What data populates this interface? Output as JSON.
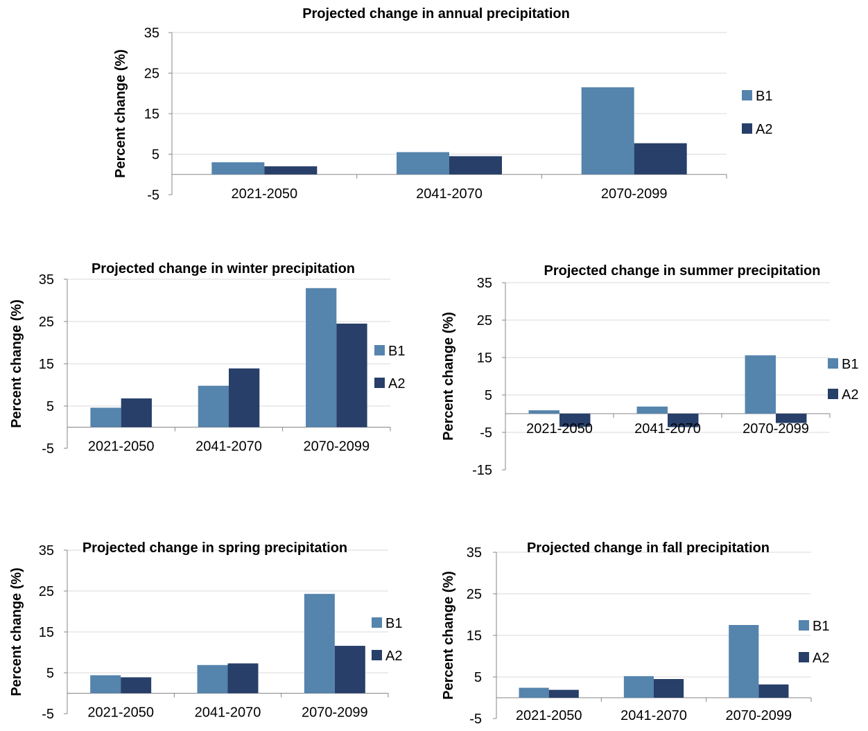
{
  "chart_data": [
    {
      "type": "bar",
      "title": "Projected change in annual precipitation",
      "ylabel": "Percent change (%)",
      "xlabel": "",
      "categories": [
        "2021-2050",
        "2041-2070",
        "2070-2099"
      ],
      "series": [
        {
          "name": "B1",
          "values": [
            3.0,
            5.5,
            21.5
          ]
        },
        {
          "name": "A2",
          "values": [
            2.0,
            4.5,
            7.7
          ]
        }
      ],
      "ylim": [
        -5,
        35
      ],
      "yticks": [
        -5,
        5,
        15,
        25,
        35
      ],
      "grid": true,
      "legend": "right"
    },
    {
      "type": "bar",
      "title": "Projected change in winter precipitation",
      "ylabel": "Percent change (%)",
      "xlabel": "",
      "categories": [
        "2021-2050",
        "2041-2070",
        "2070-2099"
      ],
      "series": [
        {
          "name": "B1",
          "values": [
            4.6,
            9.8,
            32.9
          ]
        },
        {
          "name": "A2",
          "values": [
            6.8,
            13.9,
            24.5
          ]
        }
      ],
      "ylim": [
        -5,
        35
      ],
      "yticks": [
        -5,
        5,
        15,
        25,
        35
      ],
      "grid": true,
      "legend": "right"
    },
    {
      "type": "bar",
      "title": "Projected change in summer precipitation",
      "ylabel": "Percent change (%)",
      "xlabel": "",
      "categories": [
        "2021-2050",
        "2041-2070",
        "2070-2099"
      ],
      "series": [
        {
          "name": "B1",
          "values": [
            0.9,
            1.9,
            15.6
          ]
        },
        {
          "name": "A2",
          "values": [
            -3.5,
            -3.6,
            -2.5
          ]
        }
      ],
      "ylim": [
        -15,
        35
      ],
      "yticks": [
        -15,
        -5,
        5,
        15,
        25,
        35
      ],
      "grid": true,
      "legend": "right"
    },
    {
      "type": "bar",
      "title": "Projected change in spring precipitation",
      "ylabel": "Percent change (%)",
      "xlabel": "",
      "categories": [
        "2021-2050",
        "2041-2070",
        "2070-2099"
      ],
      "series": [
        {
          "name": "B1",
          "values": [
            4.4,
            6.9,
            24.3
          ]
        },
        {
          "name": "A2",
          "values": [
            3.9,
            7.3,
            11.6
          ]
        }
      ],
      "ylim": [
        -5,
        35
      ],
      "yticks": [
        -5,
        5,
        15,
        25,
        35
      ],
      "grid": true,
      "legend": "right"
    },
    {
      "type": "bar",
      "title": "Projected change in fall precipitation",
      "ylabel": "Percent change (%)",
      "xlabel": "",
      "categories": [
        "2021-2050",
        "2041-2070",
        "2070-2099"
      ],
      "series": [
        {
          "name": "B1",
          "values": [
            2.4,
            5.2,
            17.5
          ]
        },
        {
          "name": "A2",
          "values": [
            1.9,
            4.5,
            3.2
          ]
        }
      ],
      "ylim": [
        -5,
        35
      ],
      "yticks": [
        -5,
        5,
        15,
        25,
        35
      ],
      "grid": true,
      "legend": "right"
    }
  ],
  "colors": {
    "B1": "#5584ad",
    "A2": "#273f69",
    "grid": "#d9d9d9",
    "axis": "#868686"
  }
}
